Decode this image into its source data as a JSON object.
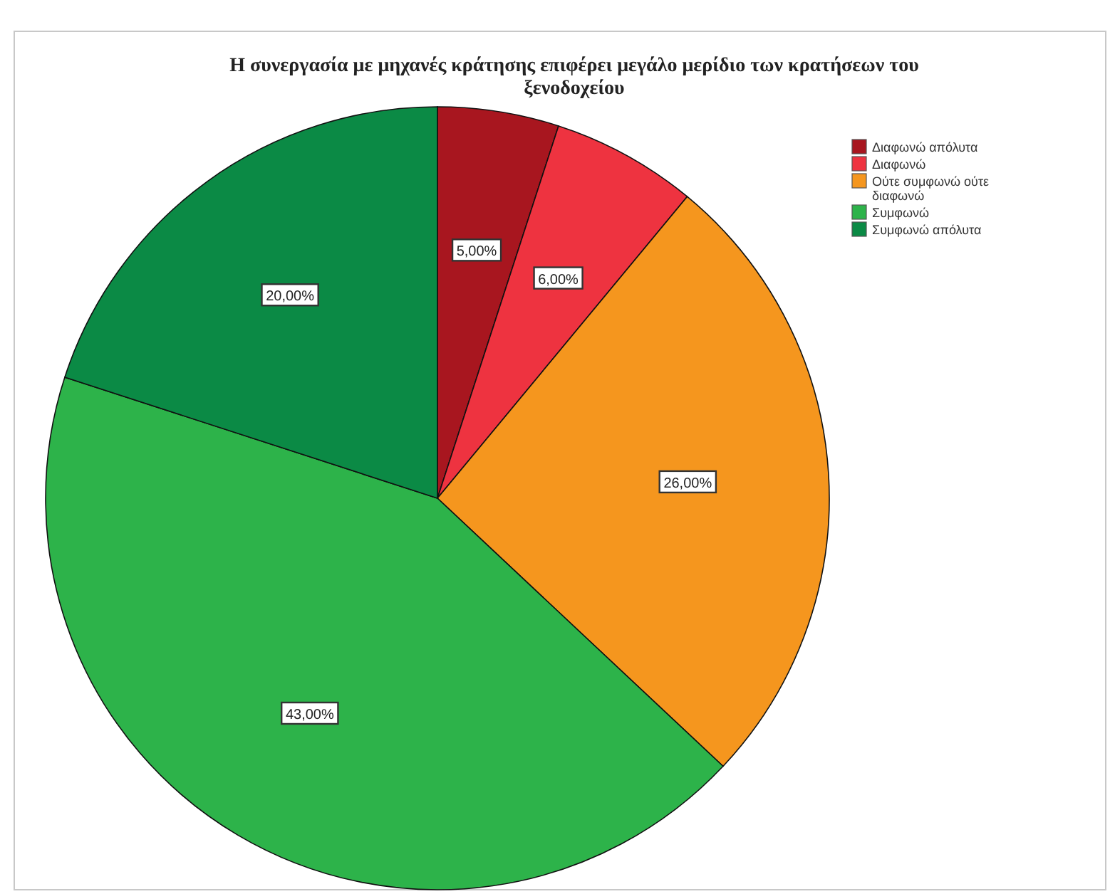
{
  "chart_data": {
    "type": "pie",
    "title": "Η συνεργασία με μηχανές κράτησης επιφέρει μεγάλο μερίδιο των κρατήσεων του ξενοδοχείου",
    "categories": [
      "Διαφωνώ απόλυτα",
      "Διαφωνώ",
      "Ούτε συμφωνώ ούτε διαφωνώ",
      "Συμφωνώ",
      "Συμφωνώ απόλυτα"
    ],
    "values": [
      5,
      6,
      26,
      43,
      20
    ],
    "colors": [
      "#a8161f",
      "#ee3340",
      "#f5961e",
      "#2db34a",
      "#0b8a45"
    ],
    "value_labels": [
      "5,00%",
      "6,00%",
      "26,00%",
      "43,00%",
      "20,00%"
    ],
    "legend": "top right"
  }
}
